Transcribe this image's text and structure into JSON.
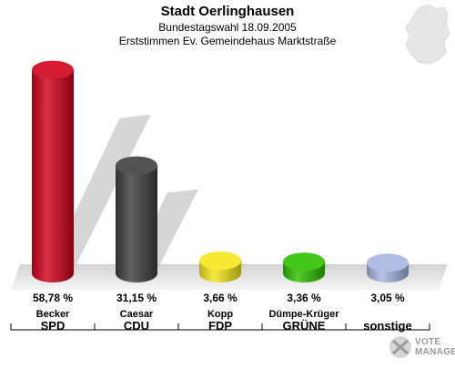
{
  "header": {
    "title": "Stadt Oerlinghausen",
    "subtitle1": "Bundestagswahl 18.09.2005",
    "subtitle2": "Erststimmen Ev. Gemeindehaus Marktstraße"
  },
  "chart_data": {
    "type": "bar",
    "style": "3d-cylinder",
    "categories": [
      "SPD",
      "CDU",
      "FDP",
      "GRÜNE",
      "sonstige"
    ],
    "candidates": [
      "Becker",
      "Caesar",
      "Kopp",
      "Dümpe-Krüger",
      ""
    ],
    "values": [
      58.78,
      31.15,
      3.66,
      3.36,
      3.05
    ],
    "value_labels": [
      "58,78 %",
      "31,15 %",
      "3,66 %",
      "3,36 %",
      "3,05 %"
    ],
    "colors": [
      "#d0021b",
      "#404040",
      "#f5e61a",
      "#2fc000",
      "#a8b4e0"
    ],
    "ylim": [
      0,
      60
    ],
    "grid": false
  },
  "logo": {
    "line1": "VOTE",
    "line2": "MANAGER"
  }
}
